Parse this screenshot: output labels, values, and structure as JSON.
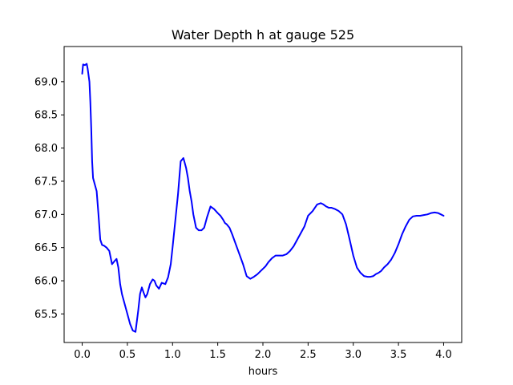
{
  "chart_data": {
    "type": "line",
    "title": "Water Depth h at gauge 525",
    "xlabel": "hours",
    "ylabel": "",
    "xlim": [
      -0.2,
      4.2
    ],
    "ylim": [
      65.07,
      69.53
    ],
    "x_ticks": [
      0.0,
      0.5,
      1.0,
      1.5,
      2.0,
      2.5,
      3.0,
      3.5,
      4.0
    ],
    "x_tick_labels": [
      "0.0",
      "0.5",
      "1.0",
      "1.5",
      "2.0",
      "2.5",
      "3.0",
      "3.5",
      "4.0"
    ],
    "y_ticks": [
      65.5,
      66.0,
      66.5,
      67.0,
      67.5,
      68.0,
      68.5,
      69.0
    ],
    "y_tick_labels": [
      "65.5",
      "66.0",
      "66.5",
      "67.0",
      "67.5",
      "68.0",
      "68.5",
      "69.0"
    ],
    "grid": false,
    "line_color": "#0000ff",
    "series": [
      {
        "x": [
          0.0,
          0.01,
          0.03,
          0.05,
          0.06,
          0.08,
          0.09,
          0.1,
          0.11,
          0.12,
          0.14,
          0.16,
          0.18,
          0.2,
          0.22,
          0.24,
          0.27,
          0.3,
          0.33,
          0.36,
          0.38,
          0.4,
          0.42,
          0.44,
          0.46,
          0.48,
          0.5,
          0.53,
          0.56,
          0.59,
          0.62,
          0.64,
          0.66,
          0.68,
          0.7,
          0.72,
          0.75,
          0.78,
          0.8,
          0.82,
          0.85,
          0.88,
          0.92,
          0.95,
          0.98,
          1.0,
          1.03,
          1.06,
          1.09,
          1.12,
          1.15,
          1.17,
          1.19,
          1.21,
          1.23,
          1.26,
          1.29,
          1.32,
          1.35,
          1.38,
          1.42,
          1.46,
          1.5,
          1.53,
          1.56,
          1.58,
          1.6,
          1.63,
          1.66,
          1.7,
          1.74,
          1.78,
          1.82,
          1.86,
          1.9,
          1.94,
          1.97,
          2.0,
          2.03,
          2.06,
          2.1,
          2.14,
          2.18,
          2.22,
          2.26,
          2.3,
          2.34,
          2.38,
          2.42,
          2.46,
          2.5,
          2.55,
          2.6,
          2.64,
          2.67,
          2.7,
          2.73,
          2.76,
          2.8,
          2.84,
          2.88,
          2.92,
          2.96,
          3.0,
          3.04,
          3.08,
          3.12,
          3.16,
          3.19,
          3.22,
          3.25,
          3.28,
          3.31,
          3.34,
          3.38,
          3.42,
          3.46,
          3.5,
          3.54,
          3.58,
          3.62,
          3.66,
          3.7,
          3.74,
          3.78,
          3.82,
          3.86,
          3.9,
          3.94,
          3.97,
          4.0
        ],
        "y": [
          69.12,
          69.26,
          69.25,
          69.27,
          69.2,
          69.0,
          68.7,
          68.3,
          67.8,
          67.55,
          67.45,
          67.35,
          67.0,
          66.62,
          66.54,
          66.53,
          66.5,
          66.45,
          66.25,
          66.3,
          66.33,
          66.2,
          65.95,
          65.8,
          65.7,
          65.6,
          65.5,
          65.35,
          65.25,
          65.23,
          65.55,
          65.8,
          65.9,
          65.82,
          65.75,
          65.8,
          65.95,
          66.02,
          66.0,
          65.93,
          65.88,
          65.97,
          65.95,
          66.05,
          66.25,
          66.5,
          66.9,
          67.3,
          67.8,
          67.85,
          67.7,
          67.55,
          67.35,
          67.2,
          67.0,
          66.8,
          66.76,
          66.76,
          66.8,
          66.95,
          67.12,
          67.08,
          67.02,
          66.98,
          66.92,
          66.87,
          66.85,
          66.8,
          66.7,
          66.55,
          66.4,
          66.25,
          66.07,
          66.03,
          66.06,
          66.1,
          66.14,
          66.18,
          66.22,
          66.28,
          66.34,
          66.38,
          66.38,
          66.38,
          66.4,
          66.45,
          66.52,
          66.62,
          66.72,
          66.82,
          66.98,
          67.05,
          67.15,
          67.17,
          67.15,
          67.12,
          67.1,
          67.1,
          67.08,
          67.05,
          67.0,
          66.85,
          66.62,
          66.38,
          66.2,
          66.12,
          66.07,
          66.06,
          66.06,
          66.07,
          66.1,
          66.12,
          66.15,
          66.2,
          66.25,
          66.32,
          66.42,
          66.55,
          66.7,
          66.82,
          66.92,
          66.97,
          66.98,
          66.98,
          66.99,
          67.0,
          67.02,
          67.03,
          67.02,
          67.0,
          66.98
        ]
      }
    ]
  }
}
